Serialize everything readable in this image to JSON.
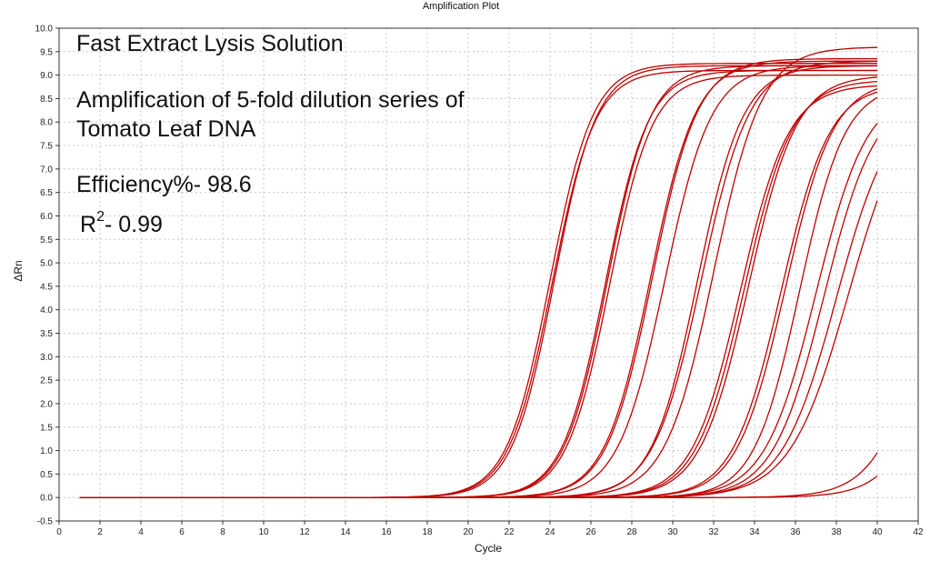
{
  "chart_data": {
    "type": "line",
    "title": "Amplification Plot",
    "xlabel": "Cycle",
    "ylabel": "ΔRn",
    "xlim": [
      0,
      42
    ],
    "ylim": [
      -0.5,
      10.0
    ],
    "xticks": [
      0,
      2,
      4,
      6,
      8,
      10,
      12,
      14,
      16,
      18,
      20,
      22,
      24,
      26,
      28,
      30,
      32,
      34,
      36,
      38,
      40,
      42
    ],
    "yticks": [
      -0.5,
      0.0,
      0.5,
      1.0,
      1.5,
      2.0,
      2.5,
      3.0,
      3.5,
      4.0,
      4.5,
      5.0,
      5.5,
      6.0,
      6.5,
      7.0,
      7.5,
      8.0,
      8.5,
      9.0,
      9.5,
      10.0
    ],
    "grid": true,
    "line_color": "#c00000",
    "cycle_range": [
      1,
      40
    ],
    "series": [
      {
        "midpoint": 24.0,
        "slope": 0.95,
        "plateau": 9.25
      },
      {
        "midpoint": 24.1,
        "slope": 0.95,
        "plateau": 9.1
      },
      {
        "midpoint": 24.2,
        "slope": 0.97,
        "plateau": 9.2
      },
      {
        "midpoint": 26.7,
        "slope": 0.95,
        "plateau": 9.1
      },
      {
        "midpoint": 26.8,
        "slope": 0.95,
        "plateau": 9.2
      },
      {
        "midpoint": 26.9,
        "slope": 0.95,
        "plateau": 9.0
      },
      {
        "midpoint": 28.9,
        "slope": 0.9,
        "plateau": 9.3
      },
      {
        "midpoint": 29.0,
        "slope": 0.9,
        "plateau": 9.35
      },
      {
        "midpoint": 29.6,
        "slope": 0.88,
        "plateau": 9.2
      },
      {
        "midpoint": 31.2,
        "slope": 0.9,
        "plateau": 9.2
      },
      {
        "midpoint": 31.4,
        "slope": 0.85,
        "plateau": 9.3
      },
      {
        "midpoint": 32.0,
        "slope": 0.85,
        "plateau": 9.6
      },
      {
        "midpoint": 33.3,
        "slope": 0.85,
        "plateau": 8.8
      },
      {
        "midpoint": 33.5,
        "slope": 0.85,
        "plateau": 8.9
      },
      {
        "midpoint": 33.7,
        "slope": 0.85,
        "plateau": 9.0
      },
      {
        "midpoint": 35.3,
        "slope": 0.85,
        "plateau": 8.8
      },
      {
        "midpoint": 35.5,
        "slope": 0.85,
        "plateau": 8.9
      },
      {
        "midpoint": 36.2,
        "slope": 0.9,
        "plateau": 8.8
      },
      {
        "midpoint": 37.0,
        "slope": 0.8,
        "plateau": 8.7
      },
      {
        "midpoint": 37.4,
        "slope": 0.8,
        "plateau": 8.6
      },
      {
        "midpoint": 38.0,
        "slope": 0.75,
        "plateau": 8.5
      },
      {
        "midpoint": 38.6,
        "slope": 0.7,
        "plateau": 8.7
      },
      {
        "midpoint": 42.5,
        "slope": 0.8,
        "plateau": 8.0
      },
      {
        "midpoint": 43.5,
        "slope": 0.8,
        "plateau": 8.0
      }
    ],
    "annotations": {
      "title": "Fast Extract Lysis Solution",
      "line1": "Amplification of 5-fold dilution series of",
      "line2": "Tomato Leaf DNA",
      "efficiency": "Efficiency%- 98.6",
      "r2_base": "R",
      "r2_exp": "2",
      "r2_value": "- 0.99"
    }
  }
}
